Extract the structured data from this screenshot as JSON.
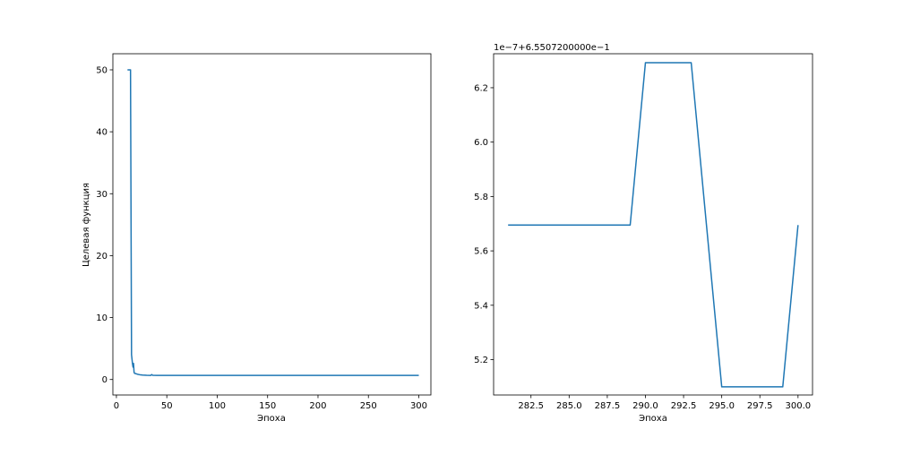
{
  "chart_data": [
    {
      "type": "line",
      "title": "",
      "xlabel": "Эпоха",
      "ylabel": "Целевая функция",
      "xlim": [
        -3.5,
        312
      ],
      "ylim": [
        -2.5,
        52.6
      ],
      "xticks": [
        0,
        50,
        100,
        150,
        200,
        250,
        300
      ],
      "yticks": [
        0,
        10,
        20,
        30,
        40,
        50
      ],
      "grid": false,
      "color": "#1f77b4",
      "series": [
        {
          "x": [
            11,
            14,
            15,
            16,
            16.5,
            17,
            17.5,
            18,
            19,
            21,
            23,
            26,
            30,
            34,
            35,
            36,
            40,
            50,
            100,
            150,
            200,
            250,
            300
          ],
          "y": [
            50,
            50,
            4,
            2.5,
            2.0,
            2.6,
            1.2,
            1.0,
            0.95,
            0.85,
            0.78,
            0.72,
            0.68,
            0.66,
            0.8,
            0.68,
            0.66,
            0.66,
            0.656,
            0.656,
            0.656,
            0.656,
            0.656
          ]
        }
      ]
    },
    {
      "type": "line",
      "title": "",
      "xlabel": "Эпоха",
      "ylabel": "",
      "offset_label": "1e−7+6.5507200000e−1",
      "xlim": [
        280.05,
        300.95
      ],
      "ylim": [
        5.07,
        6.325
      ],
      "xticks": [
        282.5,
        285.0,
        287.5,
        290.0,
        292.5,
        295.0,
        297.5,
        300.0
      ],
      "yticks": [
        5.2,
        5.4,
        5.6,
        5.8,
        6.0,
        6.2
      ],
      "grid": false,
      "color": "#1f77b4",
      "series": [
        {
          "x": [
            281,
            282,
            283,
            284,
            285,
            286,
            287,
            288,
            289,
            290,
            291,
            292,
            293,
            294,
            295,
            296,
            297,
            298,
            299,
            300
          ],
          "y": [
            5.695,
            5.695,
            5.695,
            5.695,
            5.695,
            5.695,
            5.695,
            5.695,
            5.695,
            6.292,
            6.292,
            6.292,
            6.292,
            5.695,
            5.1,
            5.1,
            5.1,
            5.1,
            5.1,
            5.695
          ]
        }
      ]
    }
  ]
}
